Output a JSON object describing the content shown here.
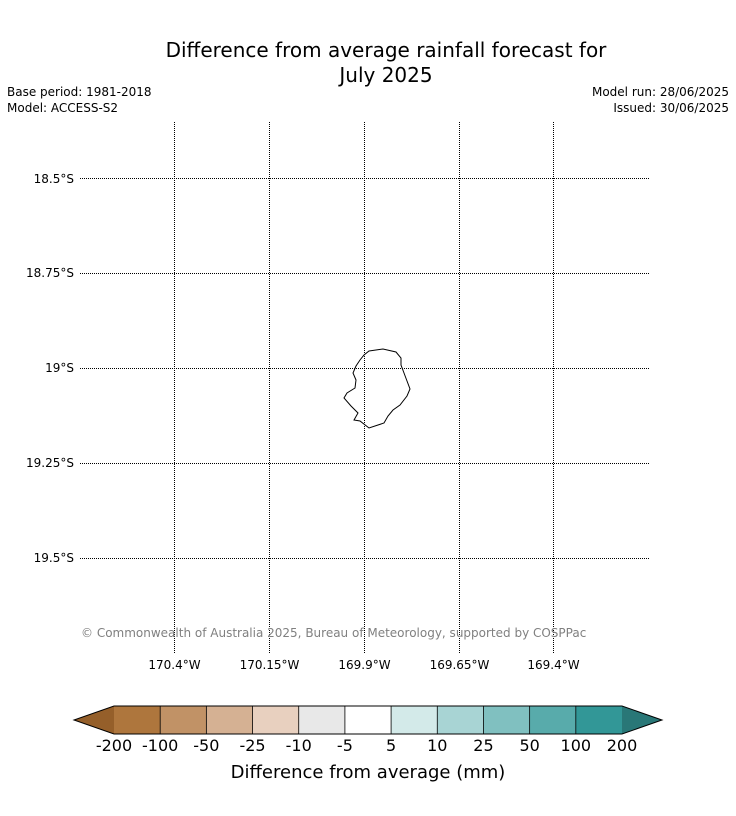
{
  "title": {
    "line1": "Difference from average rainfall forecast for",
    "line2": "July 2025"
  },
  "meta": {
    "base_period": "Base period: 1981-2018",
    "model": "Model: ACCESS-S2",
    "model_run": "Model run: 28/06/2025",
    "issued": "Issued: 30/06/2025"
  },
  "map": {
    "latitudes": [
      "18.5°S",
      "18.75°S",
      "19°S",
      "19.25°S",
      "19.5°S"
    ],
    "longitudes": [
      "170.4°W",
      "170.15°W",
      "169.9°W",
      "169.65°W",
      "169.4°W"
    ],
    "copyright": "© Commonwealth of Australia 2025, Bureau of Meteorology, supported by COSPPac",
    "gridlines": "dotted",
    "coastline_color": "#000000"
  },
  "colorbar": {
    "title": "Difference from average (mm)",
    "ticks": [
      "-200",
      "-100",
      "-50",
      "-25",
      "-10",
      "-5",
      "5",
      "10",
      "25",
      "50",
      "100",
      "200"
    ],
    "low_extend_color": "#955f2a",
    "colors": [
      "#ae763d",
      "#c19266",
      "#d5b193",
      "#e8d0bf",
      "#e8e8e8",
      "#ffffff",
      "#d3eae9",
      "#a8d4d4",
      "#80c0c0",
      "#58abab",
      "#329797"
    ],
    "high_extend_color": "#297777"
  }
}
